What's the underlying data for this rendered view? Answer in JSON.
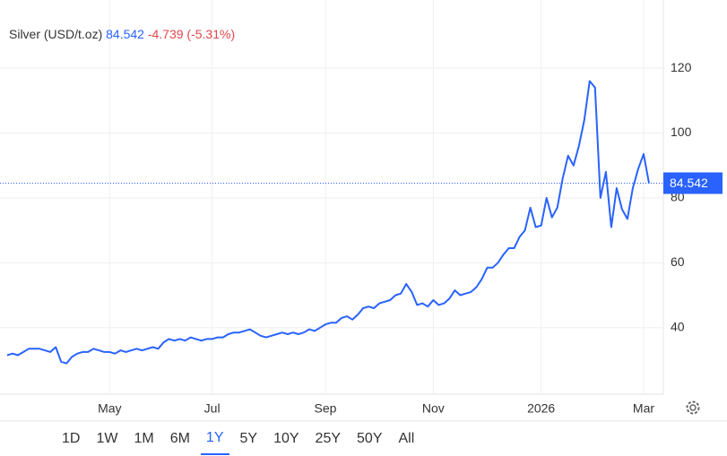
{
  "chart_data": {
    "type": "line",
    "title": "Silver (USD/t.oz)",
    "change": "-4.739 (-5.31%)",
    "categories": [
      null,
      null,
      null,
      null,
      null,
      null,
      null,
      null,
      null,
      null,
      null,
      null,
      null,
      null,
      null,
      null,
      null,
      null,
      null,
      "May",
      null,
      null,
      null,
      null,
      null,
      null,
      null,
      null,
      null,
      null,
      null,
      null,
      null,
      null,
      null,
      null,
      null,
      null,
      "Jul",
      null,
      null,
      null,
      null,
      null,
      null,
      null,
      null,
      null,
      null,
      null,
      null,
      null,
      null,
      null,
      null,
      null,
      null,
      null,
      null,
      "Sep",
      null,
      null,
      null,
      null,
      null,
      null,
      null,
      null,
      null,
      null,
      null,
      null,
      null,
      null,
      null,
      null,
      null,
      null,
      null,
      "Nov",
      null,
      null,
      null,
      null,
      null,
      null,
      null,
      null,
      null,
      null,
      null,
      null,
      null,
      null,
      null,
      null,
      null,
      null,
      null,
      "2026",
      null,
      null,
      null,
      null,
      null,
      null,
      null,
      null,
      null,
      null,
      null,
      null,
      null,
      null,
      null,
      null,
      null,
      null,
      "Mar",
      null
    ],
    "series": [
      {
        "name": "Silver",
        "color": "#2962ff",
        "values": [
          31.5,
          32,
          31.5,
          32.5,
          33.5,
          33.5,
          33.5,
          33,
          32.5,
          34,
          29.5,
          29,
          31,
          32,
          32.5,
          32.5,
          33.5,
          33,
          32.5,
          32.5,
          32,
          33,
          32.5,
          33,
          33.5,
          33,
          33.5,
          34,
          33.5,
          35.5,
          36.5,
          36,
          36.5,
          36,
          37,
          36.5,
          36,
          36.5,
          36.5,
          37,
          37,
          38,
          38.5,
          38.5,
          39,
          39.5,
          38.5,
          37.5,
          37,
          37.5,
          38,
          38.5,
          38,
          38.5,
          38,
          38.5,
          39.5,
          39,
          40,
          41,
          41.5,
          41.5,
          43,
          43.5,
          42.5,
          44,
          46,
          46.5,
          46,
          47.5,
          48,
          48.5,
          50,
          50.5,
          53.5,
          51,
          47,
          47.5,
          46.5,
          48.5,
          47,
          47.5,
          49,
          51.5,
          50,
          50.5,
          51,
          52.5,
          55,
          58.5,
          58.5,
          60,
          62.5,
          64.5,
          64.5,
          68,
          70,
          77,
          71,
          71.5,
          80,
          74,
          77,
          86,
          93,
          90,
          96,
          104,
          116,
          114,
          80,
          88,
          71,
          83,
          76.5,
          73.5,
          83,
          89,
          93.5,
          84.542
        ]
      }
    ],
    "change_color": "#e0474c",
    "ylim": [
      19.5,
      141
    ],
    "yticks": [
      40,
      60,
      80,
      100,
      120
    ],
    "grid": true,
    "ranges": [
      "1D",
      "1W",
      "1M",
      "6M",
      "1Y",
      "5Y",
      "10Y",
      "25Y",
      "50Y",
      "All"
    ],
    "selected_range": "1Y"
  }
}
